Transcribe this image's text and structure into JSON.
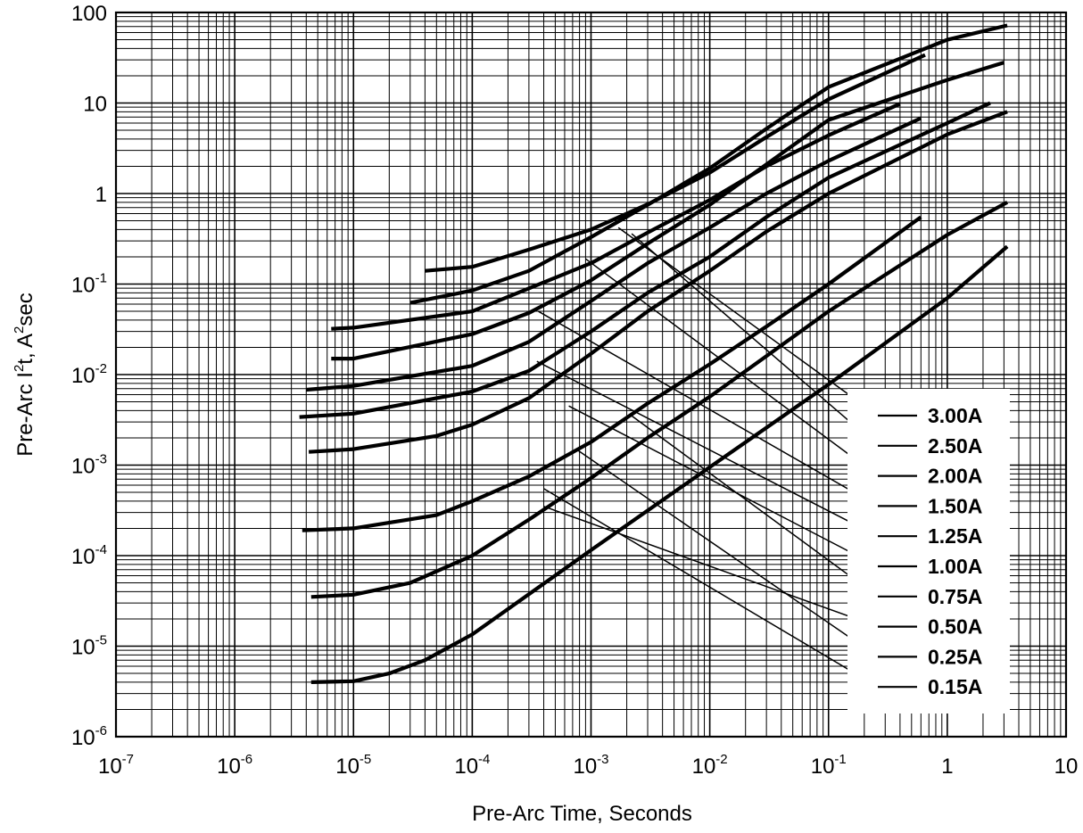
{
  "chart_data": {
    "type": "line",
    "title": "",
    "xlabel": "Pre-Arc Time, Seconds",
    "ylabel_parts": {
      "before": "Pre-Arc I",
      "sup1": "2",
      "middle": "t, A",
      "sup2": "2",
      "after": "sec"
    },
    "x_scale": "log",
    "y_scale": "log",
    "xlim": [
      1e-07,
      10
    ],
    "ylim": [
      1e-06,
      100
    ],
    "grid": true,
    "legend_placement": "bottom-right",
    "x_tick_labels": [
      {
        "base": "10",
        "exp": "-7"
      },
      {
        "base": "10",
        "exp": "-6"
      },
      {
        "base": "10",
        "exp": "-5"
      },
      {
        "base": "10",
        "exp": "-4"
      },
      {
        "base": "10",
        "exp": "-3"
      },
      {
        "base": "10",
        "exp": "-2"
      },
      {
        "base": "10",
        "exp": "-1"
      },
      {
        "base": "1",
        "exp": ""
      },
      {
        "base": "10",
        "exp": ""
      }
    ],
    "y_tick_labels": [
      {
        "base": "10",
        "exp": "-6"
      },
      {
        "base": "10",
        "exp": "-5"
      },
      {
        "base": "10",
        "exp": "-4"
      },
      {
        "base": "10",
        "exp": "-3"
      },
      {
        "base": "10",
        "exp": "-2"
      },
      {
        "base": "10",
        "exp": "-1"
      },
      {
        "base": "1",
        "exp": ""
      },
      {
        "base": "10",
        "exp": ""
      },
      {
        "base": "100",
        "exp": ""
      }
    ],
    "series": [
      {
        "name": "3.00A",
        "points": [
          [
            4e-05,
            0.14
          ],
          [
            0.0001,
            0.155
          ],
          [
            0.0003,
            0.24
          ],
          [
            0.001,
            0.4
          ],
          [
            0.003,
            0.76
          ],
          [
            0.01,
            1.7
          ],
          [
            0.03,
            4.2
          ],
          [
            0.1,
            11
          ],
          [
            0.65,
            34
          ]
        ]
      },
      {
        "name": "2.50A",
        "points": [
          [
            3e-05,
            0.062
          ],
          [
            0.0001,
            0.085
          ],
          [
            0.0003,
            0.14
          ],
          [
            0.001,
            0.33
          ],
          [
            0.003,
            0.75
          ],
          [
            0.01,
            1.9
          ],
          [
            0.03,
            5.2
          ],
          [
            0.1,
            15
          ],
          [
            1,
            50
          ],
          [
            3.2,
            72
          ]
        ]
      },
      {
        "name": "2.00A",
        "points": [
          [
            6.5e-06,
            0.032
          ],
          [
            1e-05,
            0.033
          ],
          [
            0.0001,
            0.05
          ],
          [
            0.001,
            0.17
          ],
          [
            0.003,
            0.37
          ],
          [
            0.01,
            0.85
          ],
          [
            0.03,
            2.0
          ],
          [
            0.1,
            4.4
          ],
          [
            0.4,
            9.8
          ]
        ]
      },
      {
        "name": "1.50A",
        "points": [
          [
            6.5e-06,
            0.015
          ],
          [
            1e-05,
            0.015
          ],
          [
            0.0001,
            0.028
          ],
          [
            0.0003,
            0.048
          ],
          [
            0.001,
            0.11
          ],
          [
            0.003,
            0.28
          ],
          [
            0.01,
            0.75
          ],
          [
            0.03,
            2.1
          ],
          [
            0.1,
            6.5
          ],
          [
            1,
            18
          ],
          [
            3,
            28
          ]
        ]
      },
      {
        "name": "1.25A",
        "points": [
          [
            4e-06,
            0.0068
          ],
          [
            1e-05,
            0.0075
          ],
          [
            0.0001,
            0.0125
          ],
          [
            0.0003,
            0.023
          ],
          [
            0.001,
            0.065
          ],
          [
            0.003,
            0.17
          ],
          [
            0.01,
            0.42
          ],
          [
            0.03,
            1.0
          ],
          [
            0.1,
            2.3
          ],
          [
            0.6,
            6.8
          ]
        ]
      },
      {
        "name": "1.00A",
        "points": [
          [
            3.5e-06,
            0.0034
          ],
          [
            1e-05,
            0.0037
          ],
          [
            0.0001,
            0.0065
          ],
          [
            0.0003,
            0.011
          ],
          [
            0.001,
            0.03
          ],
          [
            0.003,
            0.08
          ],
          [
            0.01,
            0.2
          ],
          [
            0.03,
            0.55
          ],
          [
            0.1,
            1.5
          ],
          [
            1,
            6
          ],
          [
            2.3,
            10
          ]
        ]
      },
      {
        "name": "0.75A",
        "points": [
          [
            4.2e-06,
            0.0014
          ],
          [
            1e-05,
            0.0015
          ],
          [
            5e-05,
            0.0021
          ],
          [
            0.0001,
            0.0028
          ],
          [
            0.0003,
            0.0055
          ],
          [
            0.001,
            0.017
          ],
          [
            0.003,
            0.05
          ],
          [
            0.01,
            0.14
          ],
          [
            0.03,
            0.38
          ],
          [
            0.1,
            1.0
          ],
          [
            1,
            4.5
          ],
          [
            3.2,
            8
          ]
        ]
      },
      {
        "name": "0.50A",
        "points": [
          [
            3.7e-06,
            0.00019
          ],
          [
            1e-05,
            0.0002
          ],
          [
            5e-05,
            0.00028
          ],
          [
            0.0001,
            0.0004
          ],
          [
            0.0003,
            0.00075
          ],
          [
            0.001,
            0.0018
          ],
          [
            0.003,
            0.0048
          ],
          [
            0.01,
            0.013
          ],
          [
            0.03,
            0.034
          ],
          [
            0.1,
            0.1
          ],
          [
            0.6,
            0.55
          ]
        ]
      },
      {
        "name": "0.25A",
        "points": [
          [
            4.4e-06,
            3.5e-05
          ],
          [
            1e-05,
            3.7e-05
          ],
          [
            3e-05,
            5e-05
          ],
          [
            0.0001,
            0.0001
          ],
          [
            0.0003,
            0.00025
          ],
          [
            0.001,
            0.00072
          ],
          [
            0.003,
            0.002
          ],
          [
            0.01,
            0.0057
          ],
          [
            0.03,
            0.016
          ],
          [
            0.1,
            0.05
          ],
          [
            1,
            0.35
          ],
          [
            3.2,
            0.8
          ]
        ]
      },
      {
        "name": "0.15A",
        "points": [
          [
            4.4e-06,
            4e-06
          ],
          [
            1e-05,
            4.1e-06
          ],
          [
            2e-05,
            5e-06
          ],
          [
            4e-05,
            7e-06
          ],
          [
            0.0001,
            1.35e-05
          ],
          [
            0.001,
            0.000115
          ],
          [
            0.01,
            0.00095
          ],
          [
            0.1,
            0.0078
          ],
          [
            1,
            0.07
          ],
          [
            3.2,
            0.26
          ]
        ]
      }
    ],
    "labels_text": [
      "3.00A",
      "2.50A",
      "2.00A",
      "1.50A",
      "1.25A",
      "1.00A",
      "0.75A",
      "0.50A",
      "0.25A",
      "0.15A"
    ],
    "colors": {
      "line": "#000000",
      "grid": "#000000",
      "background": "#ffffff"
    }
  }
}
